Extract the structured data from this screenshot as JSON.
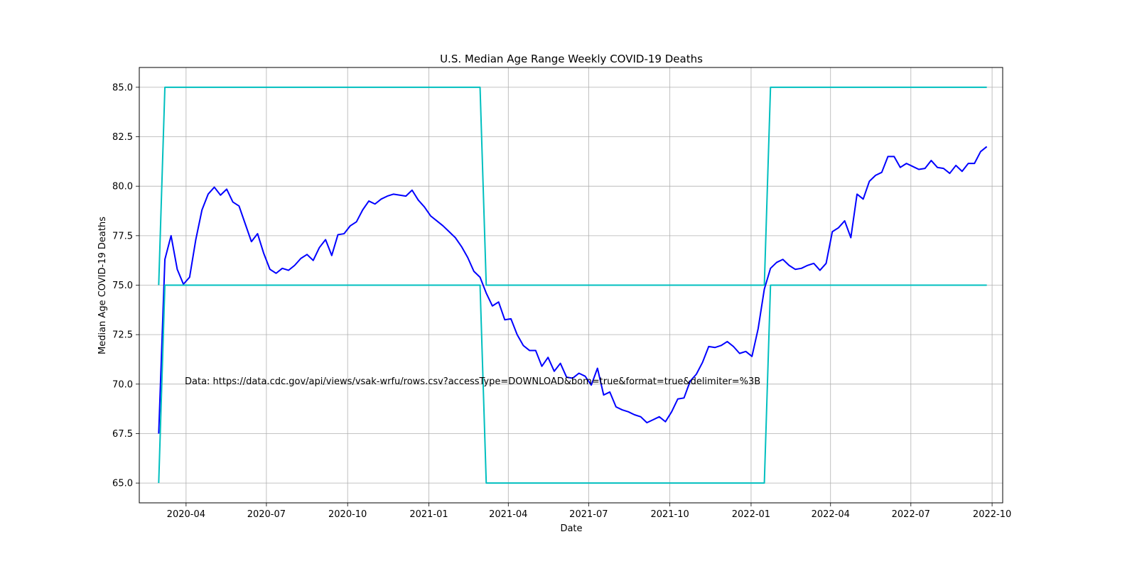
{
  "chart_data": {
    "type": "line",
    "title": "U.S. Median Age Range Weekly COVID-19 Deaths",
    "xlabel": "Date",
    "ylabel": "Median Age COVID-19 Deaths",
    "annotation": "Data: https://data.cdc.gov/api/views/vsak-wrfu/rows.csv?accessType=DOWNLOAD&bom=true&format=true&delimiter=%3B",
    "xlim": [
      "2020-02-08",
      "2022-10-13"
    ],
    "ylim": [
      64.0,
      86.0
    ],
    "grid": true,
    "xticks": [
      "2020-04-01",
      "2020-07-01",
      "2020-10-01",
      "2021-01-01",
      "2021-04-01",
      "2021-07-01",
      "2021-10-01",
      "2022-01-01",
      "2022-04-01",
      "2022-07-01",
      "2022-10-01"
    ],
    "xtick_labels": [
      "2020-04",
      "2020-07",
      "2020-10",
      "2021-01",
      "2021-04",
      "2021-07",
      "2021-10",
      "2022-01",
      "2022-04",
      "2022-07",
      "2022-10"
    ],
    "yticks": [
      65.0,
      67.5,
      70.0,
      72.5,
      75.0,
      77.5,
      80.0,
      82.5,
      85.0
    ],
    "ytick_labels": [
      "65.0",
      "67.5",
      "70.0",
      "72.5",
      "75.0",
      "77.5",
      "80.0",
      "82.5",
      "85.0"
    ],
    "series": [
      {
        "color": "#0000ff",
        "x": [
          "2020-03-01",
          "2020-03-08",
          "2020-03-15",
          "2020-03-22",
          "2020-03-29",
          "2020-04-05",
          "2020-04-12",
          "2020-04-19",
          "2020-04-26",
          "2020-05-03",
          "2020-05-10",
          "2020-05-17",
          "2020-05-24",
          "2020-05-31",
          "2020-06-07",
          "2020-06-14",
          "2020-06-21",
          "2020-06-28",
          "2020-07-05",
          "2020-07-12",
          "2020-07-19",
          "2020-07-26",
          "2020-08-02",
          "2020-08-09",
          "2020-08-16",
          "2020-08-23",
          "2020-08-30",
          "2020-09-06",
          "2020-09-13",
          "2020-09-20",
          "2020-09-27",
          "2020-10-04",
          "2020-10-11",
          "2020-10-18",
          "2020-10-25",
          "2020-11-01",
          "2020-11-08",
          "2020-11-15",
          "2020-11-22",
          "2020-11-29",
          "2020-12-06",
          "2020-12-13",
          "2020-12-20",
          "2020-12-27",
          "2021-01-03",
          "2021-01-10",
          "2021-01-17",
          "2021-01-24",
          "2021-01-31",
          "2021-02-07",
          "2021-02-14",
          "2021-02-21",
          "2021-02-28",
          "2021-03-07",
          "2021-03-14",
          "2021-03-21",
          "2021-03-28",
          "2021-04-04",
          "2021-04-11",
          "2021-04-18",
          "2021-04-25",
          "2021-05-02",
          "2021-05-09",
          "2021-05-16",
          "2021-05-23",
          "2021-05-30",
          "2021-06-06",
          "2021-06-13",
          "2021-06-20",
          "2021-06-27",
          "2021-07-04",
          "2021-07-11",
          "2021-07-18",
          "2021-07-25",
          "2021-08-01",
          "2021-08-08",
          "2021-08-15",
          "2021-08-22",
          "2021-08-29",
          "2021-09-05",
          "2021-09-12",
          "2021-09-19",
          "2021-09-26",
          "2021-10-03",
          "2021-10-10",
          "2021-10-17",
          "2021-10-24",
          "2021-10-31",
          "2021-11-07",
          "2021-11-14",
          "2021-11-21",
          "2021-11-28",
          "2021-12-05",
          "2021-12-12",
          "2021-12-19",
          "2021-12-26",
          "2022-01-02",
          "2022-01-09",
          "2022-01-16",
          "2022-01-23",
          "2022-01-30",
          "2022-02-06",
          "2022-02-13",
          "2022-02-20",
          "2022-02-27",
          "2022-03-06",
          "2022-03-13",
          "2022-03-20",
          "2022-03-27",
          "2022-04-03",
          "2022-04-10",
          "2022-04-17",
          "2022-04-24",
          "2022-05-01",
          "2022-05-08",
          "2022-05-15",
          "2022-05-22",
          "2022-05-29",
          "2022-06-05",
          "2022-06-12",
          "2022-06-19",
          "2022-06-26",
          "2022-07-03",
          "2022-07-10",
          "2022-07-17",
          "2022-07-24",
          "2022-07-31",
          "2022-08-07",
          "2022-08-14",
          "2022-08-21",
          "2022-08-28",
          "2022-09-04",
          "2022-09-11",
          "2022-09-18",
          "2022-09-25"
        ],
        "values": [
          67.5,
          76.3,
          77.5,
          75.8,
          75.05,
          75.4,
          77.3,
          78.8,
          79.6,
          79.95,
          79.55,
          79.85,
          79.2,
          79.0,
          78.1,
          77.2,
          77.6,
          76.6,
          75.8,
          75.6,
          75.85,
          75.75,
          76.0,
          76.35,
          76.55,
          76.25,
          76.9,
          77.3,
          76.5,
          77.55,
          77.6,
          78.0,
          78.2,
          78.8,
          79.25,
          79.1,
          79.35,
          79.5,
          79.6,
          79.55,
          79.5,
          79.8,
          79.3,
          78.95,
          78.5,
          78.25,
          78.0,
          77.7,
          77.4,
          76.95,
          76.4,
          75.7,
          75.4,
          74.6,
          73.95,
          74.15,
          73.25,
          73.3,
          72.5,
          71.95,
          71.7,
          71.7,
          70.9,
          71.35,
          70.65,
          71.05,
          70.35,
          70.3,
          70.55,
          70.4,
          69.95,
          70.8,
          69.45,
          69.6,
          68.85,
          68.7,
          68.6,
          68.45,
          68.35,
          68.05,
          68.2,
          68.35,
          68.1,
          68.6,
          69.25,
          69.3,
          70.15,
          70.5,
          71.1,
          71.9,
          71.85,
          71.95,
          72.15,
          71.9,
          71.55,
          71.65,
          71.4,
          72.8,
          74.8,
          75.85,
          76.15,
          76.3,
          76.0,
          75.8,
          75.85,
          76.0,
          76.1,
          75.75,
          76.1,
          77.7,
          77.9,
          78.25,
          77.4,
          79.6,
          79.35,
          80.25,
          80.55,
          80.7,
          81.5,
          81.5,
          80.95,
          81.15,
          81.0,
          80.85,
          80.9,
          81.3,
          80.95,
          80.9,
          80.65,
          81.05,
          80.75,
          81.15,
          81.15,
          81.75,
          82.0
        ]
      },
      {
        "color": "#00bfbf",
        "x": [
          "2020-03-01",
          "2020-03-08",
          "2021-02-28",
          "2021-03-07",
          "2022-01-16",
          "2022-01-23",
          "2022-09-25"
        ],
        "values": [
          75,
          85,
          85,
          75,
          75,
          85,
          85
        ]
      },
      {
        "color": "#00bfbf",
        "x": [
          "2020-03-01",
          "2020-03-08",
          "2021-02-28",
          "2021-03-07",
          "2022-01-16",
          "2022-01-23",
          "2022-09-25"
        ],
        "values": [
          65,
          75,
          75,
          65,
          65,
          75,
          75
        ]
      }
    ]
  }
}
